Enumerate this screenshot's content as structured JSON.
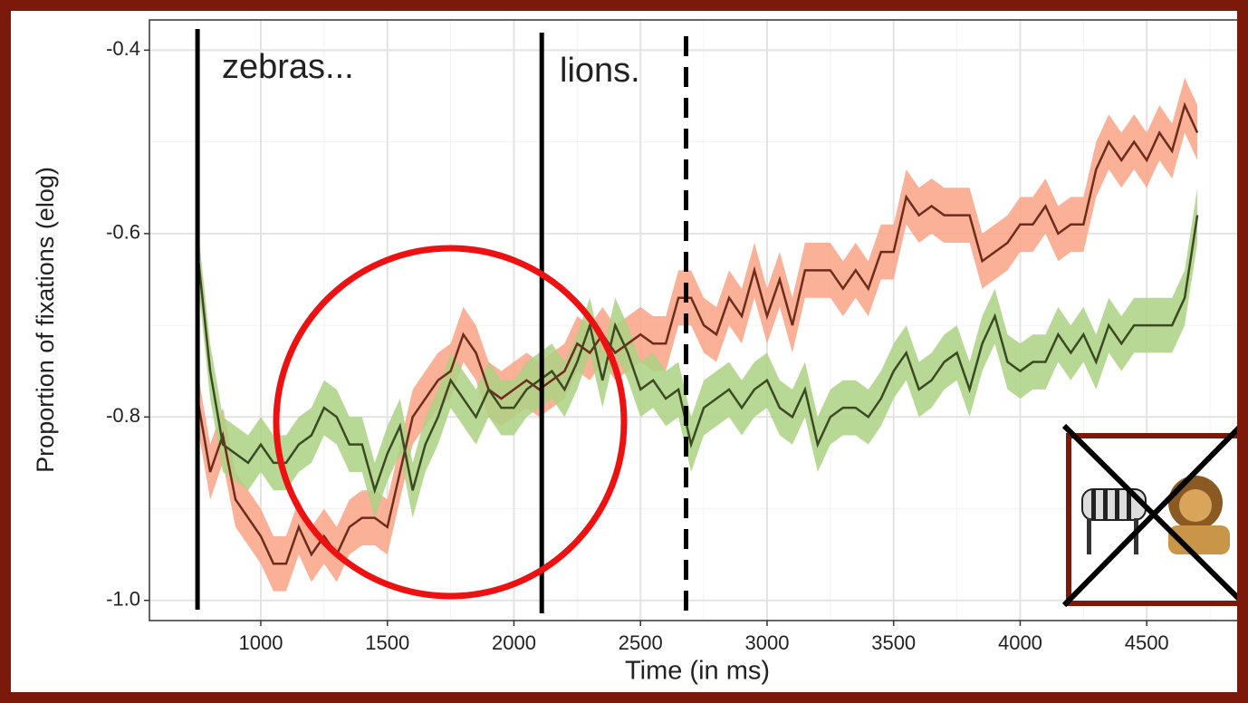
{
  "chart_data": {
    "type": "line",
    "xlabel": "Time (in ms)",
    "ylabel": "Proportion of fixations (elog)",
    "x": [
      750,
      800,
      850,
      900,
      950,
      1000,
      1050,
      1100,
      1150,
      1200,
      1250,
      1300,
      1350,
      1400,
      1450,
      1500,
      1550,
      1600,
      1650,
      1700,
      1750,
      1800,
      1850,
      1900,
      1950,
      2000,
      2050,
      2100,
      2150,
      2200,
      2250,
      2300,
      2350,
      2400,
      2450,
      2500,
      2550,
      2600,
      2650,
      2700,
      2750,
      2800,
      2850,
      2900,
      2950,
      3000,
      3050,
      3100,
      3150,
      3200,
      3250,
      3300,
      3350,
      3400,
      3450,
      3500,
      3550,
      3600,
      3650,
      3700,
      3750,
      3800,
      3850,
      3900,
      3950,
      4000,
      4050,
      4100,
      4150,
      4200,
      4250,
      4300,
      4350,
      4400,
      4450,
      4500,
      4550,
      4600,
      4650,
      4700
    ],
    "series": [
      {
        "color": "#f9a385",
        "line_color": "#6e2c1c",
        "error": 0.03,
        "values": [
          -0.78,
          -0.86,
          -0.82,
          -0.89,
          -0.91,
          -0.93,
          -0.96,
          -0.96,
          -0.92,
          -0.95,
          -0.93,
          -0.95,
          -0.92,
          -0.91,
          -0.91,
          -0.92,
          -0.86,
          -0.8,
          -0.78,
          -0.76,
          -0.75,
          -0.71,
          -0.73,
          -0.77,
          -0.78,
          -0.77,
          -0.76,
          -0.77,
          -0.76,
          -0.75,
          -0.72,
          -0.73,
          -0.71,
          -0.73,
          -0.72,
          -0.71,
          -0.72,
          -0.72,
          -0.67,
          -0.67,
          -0.7,
          -0.71,
          -0.67,
          -0.69,
          -0.64,
          -0.69,
          -0.65,
          -0.7,
          -0.64,
          -0.64,
          -0.64,
          -0.66,
          -0.64,
          -0.66,
          -0.62,
          -0.62,
          -0.56,
          -0.58,
          -0.57,
          -0.58,
          -0.58,
          -0.58,
          -0.63,
          -0.62,
          -0.61,
          -0.59,
          -0.59,
          -0.57,
          -0.6,
          -0.59,
          -0.59,
          -0.53,
          -0.5,
          -0.52,
          -0.5,
          -0.52,
          -0.49,
          -0.51,
          -0.46,
          -0.49
        ]
      },
      {
        "color": "#acd283",
        "line_color": "#3b4a22",
        "error": 0.03,
        "values": [
          -0.62,
          -0.75,
          -0.83,
          -0.84,
          -0.85,
          -0.83,
          -0.85,
          -0.85,
          -0.83,
          -0.82,
          -0.79,
          -0.8,
          -0.83,
          -0.83,
          -0.88,
          -0.84,
          -0.81,
          -0.88,
          -0.83,
          -0.8,
          -0.76,
          -0.78,
          -0.8,
          -0.77,
          -0.79,
          -0.79,
          -0.77,
          -0.76,
          -0.75,
          -0.77,
          -0.74,
          -0.7,
          -0.76,
          -0.7,
          -0.73,
          -0.77,
          -0.76,
          -0.78,
          -0.77,
          -0.83,
          -0.79,
          -0.78,
          -0.77,
          -0.79,
          -0.77,
          -0.76,
          -0.79,
          -0.8,
          -0.77,
          -0.83,
          -0.8,
          -0.79,
          -0.79,
          -0.8,
          -0.78,
          -0.75,
          -0.73,
          -0.77,
          -0.76,
          -0.74,
          -0.73,
          -0.77,
          -0.72,
          -0.69,
          -0.74,
          -0.75,
          -0.74,
          -0.74,
          -0.71,
          -0.73,
          -0.71,
          -0.74,
          -0.7,
          -0.72,
          -0.7,
          -0.7,
          -0.7,
          -0.7,
          -0.67,
          -0.58
        ]
      }
    ],
    "vlines": [
      {
        "x": 750,
        "style": "solid"
      },
      {
        "x": 2110,
        "style": "solid"
      },
      {
        "x": 2680,
        "style": "dashed"
      }
    ],
    "annotations": [
      "zebras...",
      "lions."
    ],
    "xlim": [
      560,
      4900
    ],
    "ylim": [
      -1.022,
      -0.367
    ],
    "xticks": [
      1000,
      1500,
      2000,
      2500,
      3000,
      3500,
      4000,
      4500
    ],
    "yticks": [
      {
        "value": -1,
        "label": "-1.0"
      },
      -0.8,
      -0.6,
      -0.4
    ],
    "grid": true
  }
}
